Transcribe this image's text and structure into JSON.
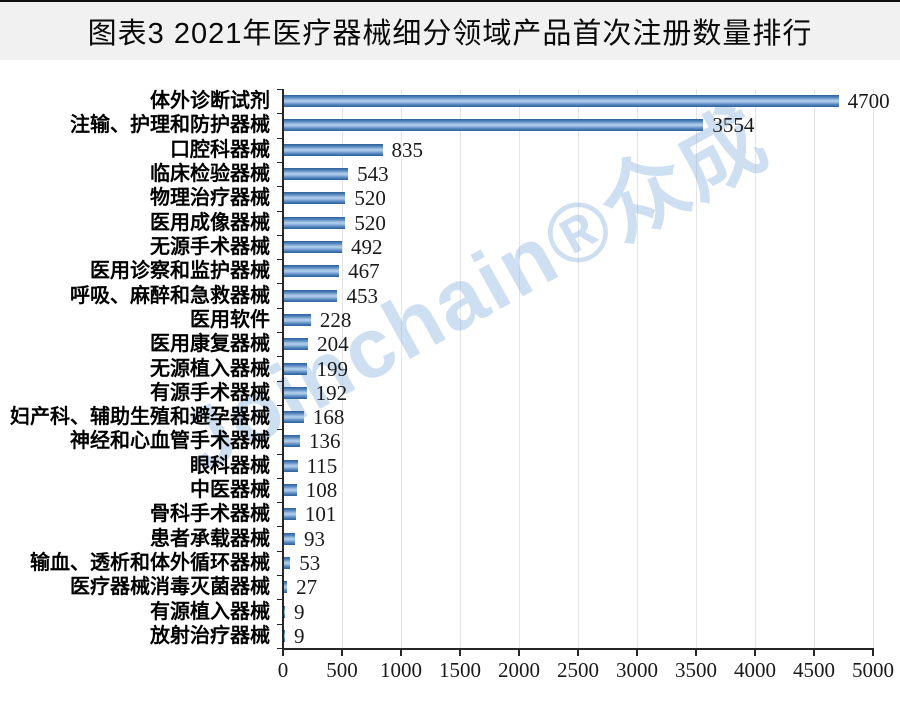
{
  "title": "图表3 2021年医疗器械细分领域产品首次注册数量排行",
  "watermark": "Joinchain®众成",
  "chart_data": {
    "type": "bar",
    "orientation": "horizontal",
    "title": "图表3 2021年医疗器械细分领域产品首次注册数量排行",
    "categories": [
      "体外诊断试剂",
      "注输、护理和防护器械",
      "口腔科器械",
      "临床检验器械",
      "物理治疗器械",
      "医用成像器械",
      "无源手术器械",
      "医用诊察和监护器械",
      "呼吸、麻醉和急救器械",
      "医用软件",
      "医用康复器械",
      "无源植入器械",
      "有源手术器械",
      "妇产科、辅助生殖和避孕器械",
      "神经和心血管手术器械",
      "眼科器械",
      "中医器械",
      "骨科手术器械",
      "患者承载器械",
      "输血、透析和体外循环器械",
      "医疗器械消毒灭菌器械",
      "有源植入器械",
      "放射治疗器械"
    ],
    "values": [
      4700,
      3554,
      835,
      543,
      520,
      520,
      492,
      467,
      453,
      228,
      204,
      199,
      192,
      168,
      136,
      115,
      108,
      101,
      93,
      53,
      27,
      9,
      9
    ],
    "xlim": [
      0,
      5000
    ],
    "x_ticks": [
      0,
      500,
      1000,
      1500,
      2000,
      2500,
      3000,
      3500,
      4000,
      4500,
      5000
    ],
    "grid": true,
    "legend": false,
    "value_labels": true,
    "bar_color": "#4f81bd"
  },
  "colors": {
    "title_bg": "#f1f1f1",
    "bar_main": "#4f81bd",
    "bar_highlight": "#abc9e8",
    "bar_edge": "#2e5f98",
    "grid": "#e4e4e4",
    "axis": "#262626",
    "watermark_blue": "#82aadc"
  }
}
